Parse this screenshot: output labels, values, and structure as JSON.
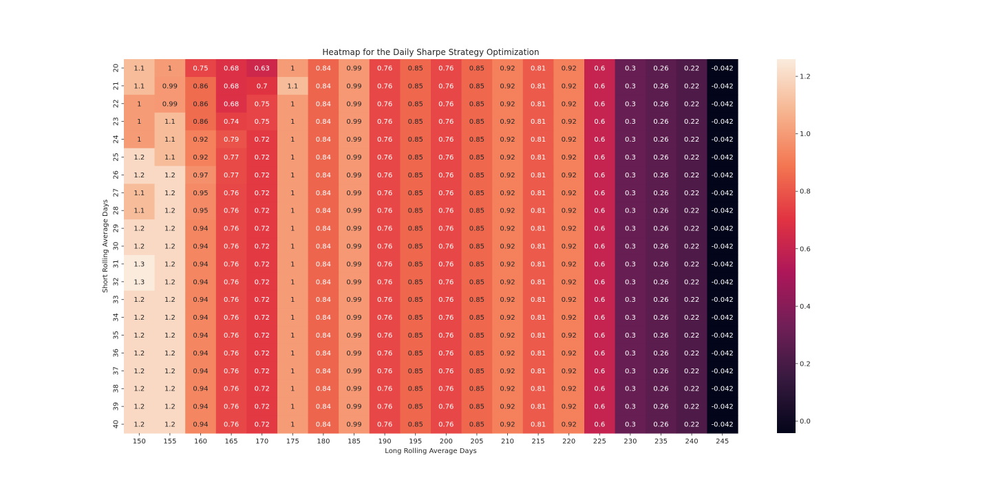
{
  "chart_data": {
    "type": "heatmap",
    "title": "Heatmap for the Daily Sharpe Strategy Optimization",
    "xlabel": "Long Rolling Average Days",
    "ylabel": "Short Rolling Average Days",
    "x": [
      "150",
      "155",
      "160",
      "165",
      "170",
      "175",
      "180",
      "185",
      "190",
      "195",
      "200",
      "205",
      "210",
      "215",
      "220",
      "225",
      "230",
      "235",
      "240",
      "245"
    ],
    "y": [
      "20",
      "21",
      "22",
      "23",
      "24",
      "25",
      "26",
      "27",
      "28",
      "29",
      "30",
      "31",
      "32",
      "33",
      "34",
      "35",
      "36",
      "37",
      "38",
      "39",
      "40"
    ],
    "values": [
      [
        "1.1",
        "1",
        "0.75",
        "0.68",
        "0.63",
        "1",
        "0.84",
        "0.99",
        "0.76",
        "0.85",
        "0.76",
        "0.85",
        "0.92",
        "0.81",
        "0.92",
        "0.6",
        "0.3",
        "0.26",
        "0.22",
        "-0.042"
      ],
      [
        "1.1",
        "0.99",
        "0.86",
        "0.68",
        "0.7",
        "1.1",
        "0.84",
        "0.99",
        "0.76",
        "0.85",
        "0.76",
        "0.85",
        "0.92",
        "0.81",
        "0.92",
        "0.6",
        "0.3",
        "0.26",
        "0.22",
        "-0.042"
      ],
      [
        "1",
        "0.99",
        "0.86",
        "0.68",
        "0.75",
        "1",
        "0.84",
        "0.99",
        "0.76",
        "0.85",
        "0.76",
        "0.85",
        "0.92",
        "0.81",
        "0.92",
        "0.6",
        "0.3",
        "0.26",
        "0.22",
        "-0.042"
      ],
      [
        "1",
        "1.1",
        "0.86",
        "0.74",
        "0.75",
        "1",
        "0.84",
        "0.99",
        "0.76",
        "0.85",
        "0.76",
        "0.85",
        "0.92",
        "0.81",
        "0.92",
        "0.6",
        "0.3",
        "0.26",
        "0.22",
        "-0.042"
      ],
      [
        "1",
        "1.1",
        "0.92",
        "0.79",
        "0.72",
        "1",
        "0.84",
        "0.99",
        "0.76",
        "0.85",
        "0.76",
        "0.85",
        "0.92",
        "0.81",
        "0.92",
        "0.6",
        "0.3",
        "0.26",
        "0.22",
        "-0.042"
      ],
      [
        "1.2",
        "1.1",
        "0.92",
        "0.77",
        "0.72",
        "1",
        "0.84",
        "0.99",
        "0.76",
        "0.85",
        "0.76",
        "0.85",
        "0.92",
        "0.81",
        "0.92",
        "0.6",
        "0.3",
        "0.26",
        "0.22",
        "-0.042"
      ],
      [
        "1.2",
        "1.2",
        "0.97",
        "0.77",
        "0.72",
        "1",
        "0.84",
        "0.99",
        "0.76",
        "0.85",
        "0.76",
        "0.85",
        "0.92",
        "0.81",
        "0.92",
        "0.6",
        "0.3",
        "0.26",
        "0.22",
        "-0.042"
      ],
      [
        "1.1",
        "1.2",
        "0.95",
        "0.76",
        "0.72",
        "1",
        "0.84",
        "0.99",
        "0.76",
        "0.85",
        "0.76",
        "0.85",
        "0.92",
        "0.81",
        "0.92",
        "0.6",
        "0.3",
        "0.26",
        "0.22",
        "-0.042"
      ],
      [
        "1.1",
        "1.2",
        "0.95",
        "0.76",
        "0.72",
        "1",
        "0.84",
        "0.99",
        "0.76",
        "0.85",
        "0.76",
        "0.85",
        "0.92",
        "0.81",
        "0.92",
        "0.6",
        "0.3",
        "0.26",
        "0.22",
        "-0.042"
      ],
      [
        "1.2",
        "1.2",
        "0.94",
        "0.76",
        "0.72",
        "1",
        "0.84",
        "0.99",
        "0.76",
        "0.85",
        "0.76",
        "0.85",
        "0.92",
        "0.81",
        "0.92",
        "0.6",
        "0.3",
        "0.26",
        "0.22",
        "-0.042"
      ],
      [
        "1.2",
        "1.2",
        "0.94",
        "0.76",
        "0.72",
        "1",
        "0.84",
        "0.99",
        "0.76",
        "0.85",
        "0.76",
        "0.85",
        "0.92",
        "0.81",
        "0.92",
        "0.6",
        "0.3",
        "0.26",
        "0.22",
        "-0.042"
      ],
      [
        "1.3",
        "1.2",
        "0.94",
        "0.76",
        "0.72",
        "1",
        "0.84",
        "0.99",
        "0.76",
        "0.85",
        "0.76",
        "0.85",
        "0.92",
        "0.81",
        "0.92",
        "0.6",
        "0.3",
        "0.26",
        "0.22",
        "-0.042"
      ],
      [
        "1.3",
        "1.2",
        "0.94",
        "0.76",
        "0.72",
        "1",
        "0.84",
        "0.99",
        "0.76",
        "0.85",
        "0.76",
        "0.85",
        "0.92",
        "0.81",
        "0.92",
        "0.6",
        "0.3",
        "0.26",
        "0.22",
        "-0.042"
      ],
      [
        "1.2",
        "1.2",
        "0.94",
        "0.76",
        "0.72",
        "1",
        "0.84",
        "0.99",
        "0.76",
        "0.85",
        "0.76",
        "0.85",
        "0.92",
        "0.81",
        "0.92",
        "0.6",
        "0.3",
        "0.26",
        "0.22",
        "-0.042"
      ],
      [
        "1.2",
        "1.2",
        "0.94",
        "0.76",
        "0.72",
        "1",
        "0.84",
        "0.99",
        "0.76",
        "0.85",
        "0.76",
        "0.85",
        "0.92",
        "0.81",
        "0.92",
        "0.6",
        "0.3",
        "0.26",
        "0.22",
        "-0.042"
      ],
      [
        "1.2",
        "1.2",
        "0.94",
        "0.76",
        "0.72",
        "1",
        "0.84",
        "0.99",
        "0.76",
        "0.85",
        "0.76",
        "0.85",
        "0.92",
        "0.81",
        "0.92",
        "0.6",
        "0.3",
        "0.26",
        "0.22",
        "-0.042"
      ],
      [
        "1.2",
        "1.2",
        "0.94",
        "0.76",
        "0.72",
        "1",
        "0.84",
        "0.99",
        "0.76",
        "0.85",
        "0.76",
        "0.85",
        "0.92",
        "0.81",
        "0.92",
        "0.6",
        "0.3",
        "0.26",
        "0.22",
        "-0.042"
      ],
      [
        "1.2",
        "1.2",
        "0.94",
        "0.76",
        "0.72",
        "1",
        "0.84",
        "0.99",
        "0.76",
        "0.85",
        "0.76",
        "0.85",
        "0.92",
        "0.81",
        "0.92",
        "0.6",
        "0.3",
        "0.26",
        "0.22",
        "-0.042"
      ],
      [
        "1.2",
        "1.2",
        "0.94",
        "0.76",
        "0.72",
        "1",
        "0.84",
        "0.99",
        "0.76",
        "0.85",
        "0.76",
        "0.85",
        "0.92",
        "0.81",
        "0.92",
        "0.6",
        "0.3",
        "0.26",
        "0.22",
        "-0.042"
      ],
      [
        "1.2",
        "1.2",
        "0.94",
        "0.76",
        "0.72",
        "1",
        "0.84",
        "0.99",
        "0.76",
        "0.85",
        "0.76",
        "0.85",
        "0.92",
        "0.81",
        "0.92",
        "0.6",
        "0.3",
        "0.26",
        "0.22",
        "-0.042"
      ],
      [
        "1.2",
        "1.2",
        "0.94",
        "0.76",
        "0.72",
        "1",
        "0.84",
        "0.99",
        "0.76",
        "0.85",
        "0.76",
        "0.85",
        "0.92",
        "0.81",
        "0.92",
        "0.6",
        "0.3",
        "0.26",
        "0.22",
        "-0.042"
      ]
    ],
    "colorbar": {
      "colormap": "rocket",
      "vmin": -0.042,
      "vmax": 1.26,
      "ticks": [
        "0.0",
        "0.2",
        "0.4",
        "0.6",
        "0.8",
        "1.0",
        "1.2"
      ],
      "colors": [
        "#03051a",
        "#36193e",
        "#701f57",
        "#ad1759",
        "#e13342",
        "#f37651",
        "#f6b48f",
        "#faebdd"
      ]
    },
    "grid": false,
    "legend": "colorbar-right"
  }
}
